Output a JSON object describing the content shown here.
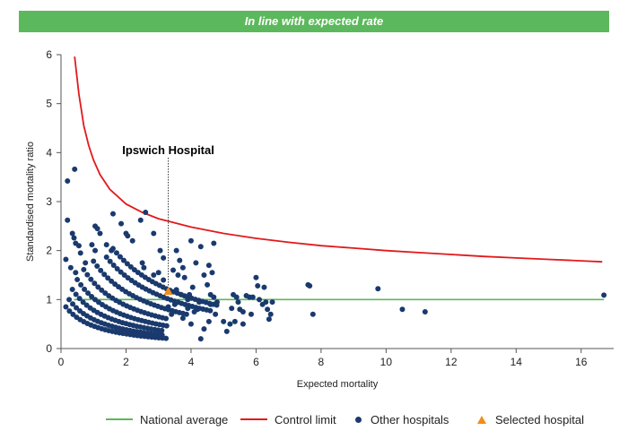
{
  "banner": {
    "text": "In line with expected rate"
  },
  "colors": {
    "banner": "#5cb85c",
    "national_average": "#5cb85c",
    "control_limit": "#e2191c",
    "other_hospitals": "#1a3a6e",
    "selected_hospital": "#f28c1b"
  },
  "chart_data": {
    "type": "scatter",
    "title": "",
    "xlabel": "Expected mortality",
    "ylabel": "Standardised mortality ratio",
    "xlim": [
      0,
      17
    ],
    "ylim": [
      0,
      6
    ],
    "xticks": [
      "0",
      "2",
      "4",
      "6",
      "8",
      "10",
      "12",
      "14",
      "16"
    ],
    "yticks": [
      "0",
      "1",
      "2",
      "3",
      "4",
      "5",
      "6"
    ],
    "grid": false,
    "legend_position": "bottom",
    "national_average": {
      "name": "National average",
      "y": 1,
      "x_range": [
        0.4,
        16.7
      ]
    },
    "control_limit": {
      "name": "Control limit",
      "points": [
        [
          0.42,
          5.96
        ],
        [
          0.55,
          5.2
        ],
        [
          0.7,
          4.55
        ],
        [
          0.85,
          4.15
        ],
        [
          1.0,
          3.85
        ],
        [
          1.2,
          3.55
        ],
        [
          1.5,
          3.25
        ],
        [
          2.0,
          2.95
        ],
        [
          2.5,
          2.78
        ],
        [
          3.0,
          2.65
        ],
        [
          3.3,
          2.6
        ],
        [
          4.0,
          2.48
        ],
        [
          5.0,
          2.35
        ],
        [
          6.0,
          2.25
        ],
        [
          7.0,
          2.17
        ],
        [
          8.0,
          2.1
        ],
        [
          9.0,
          2.05
        ],
        [
          10.0,
          2.0
        ],
        [
          11.0,
          1.96
        ],
        [
          12.0,
          1.92
        ],
        [
          13.0,
          1.88
        ],
        [
          14.0,
          1.85
        ],
        [
          15.0,
          1.82
        ],
        [
          16.0,
          1.79
        ],
        [
          16.65,
          1.77
        ]
      ]
    },
    "other_hospitals": {
      "name": "Other hospitals",
      "points": [
        [
          0.2,
          3.42
        ],
        [
          0.42,
          3.66
        ],
        [
          0.2,
          2.62
        ],
        [
          0.35,
          2.35
        ],
        [
          0.4,
          2.26
        ],
        [
          0.45,
          2.15
        ],
        [
          0.55,
          2.1
        ],
        [
          0.3,
          1.65
        ],
        [
          0.45,
          1.55
        ],
        [
          0.15,
          1.82
        ],
        [
          0.6,
          1.95
        ],
        [
          0.75,
          1.75
        ],
        [
          0.95,
          2.12
        ],
        [
          1.05,
          2.5
        ],
        [
          1.12,
          2.45
        ],
        [
          1.2,
          2.35
        ],
        [
          1.05,
          2.0
        ],
        [
          1.4,
          2.12
        ],
        [
          1.55,
          2.0
        ],
        [
          1.6,
          2.75
        ],
        [
          1.85,
          2.55
        ],
        [
          2.0,
          2.35
        ],
        [
          2.05,
          2.3
        ],
        [
          2.2,
          2.2
        ],
        [
          2.45,
          2.62
        ],
        [
          2.6,
          2.78
        ],
        [
          2.85,
          2.35
        ],
        [
          3.05,
          2.0
        ],
        [
          3.15,
          1.85
        ],
        [
          2.5,
          1.75
        ],
        [
          2.55,
          1.65
        ],
        [
          2.85,
          1.5
        ],
        [
          3.0,
          1.55
        ],
        [
          3.15,
          1.4
        ],
        [
          3.45,
          1.6
        ],
        [
          3.55,
          2.0
        ],
        [
          3.65,
          1.8
        ],
        [
          3.75,
          1.65
        ],
        [
          3.6,
          1.5
        ],
        [
          3.8,
          1.45
        ],
        [
          3.55,
          1.2
        ],
        [
          3.7,
          1.1
        ],
        [
          3.9,
          1.0
        ],
        [
          4.0,
          2.2
        ],
        [
          4.15,
          1.75
        ],
        [
          4.3,
          2.08
        ],
        [
          4.4,
          1.5
        ],
        [
          4.55,
          1.7
        ],
        [
          4.65,
          1.55
        ],
        [
          4.7,
          2.15
        ],
        [
          4.5,
          1.3
        ],
        [
          4.6,
          1.1
        ],
        [
          4.7,
          1.05
        ],
        [
          4.8,
          0.95
        ],
        [
          4.6,
          0.9
        ],
        [
          4.75,
          0.7
        ],
        [
          4.55,
          0.55
        ],
        [
          4.4,
          0.4
        ],
        [
          4.3,
          0.2
        ],
        [
          4.25,
          0.95
        ],
        [
          4.1,
          0.75
        ],
        [
          4.2,
          0.8
        ],
        [
          4.05,
          1.25
        ],
        [
          3.95,
          1.1
        ],
        [
          3.3,
          0.85
        ],
        [
          3.4,
          0.7
        ],
        [
          3.5,
          0.9
        ],
        [
          3.6,
          0.95
        ],
        [
          3.75,
          0.62
        ],
        [
          3.9,
          0.82
        ],
        [
          4.0,
          0.5
        ],
        [
          5.0,
          0.55
        ],
        [
          5.2,
          0.5
        ],
        [
          5.3,
          1.1
        ],
        [
          5.4,
          1.05
        ],
        [
          5.45,
          0.95
        ],
        [
          5.5,
          0.8
        ],
        [
          5.6,
          0.75
        ],
        [
          5.6,
          0.5
        ],
        [
          5.7,
          1.08
        ],
        [
          5.8,
          1.05
        ],
        [
          5.85,
          0.7
        ],
        [
          5.9,
          1.05
        ],
        [
          6.0,
          1.45
        ],
        [
          6.05,
          1.28
        ],
        [
          6.1,
          1.0
        ],
        [
          6.2,
          0.9
        ],
        [
          6.25,
          1.25
        ],
        [
          6.3,
          0.95
        ],
        [
          6.35,
          0.8
        ],
        [
          6.4,
          0.6
        ],
        [
          6.45,
          0.7
        ],
        [
          6.5,
          0.95
        ],
        [
          5.1,
          0.35
        ],
        [
          5.25,
          0.82
        ],
        [
          5.35,
          0.55
        ],
        [
          7.6,
          1.3
        ],
        [
          7.65,
          1.28
        ],
        [
          7.75,
          0.7
        ],
        [
          9.75,
          1.22
        ],
        [
          10.5,
          0.8
        ],
        [
          11.2,
          0.75
        ],
        [
          16.7,
          1.09
        ]
      ]
    },
    "selected_hospital": {
      "name": "Selected hospital",
      "x": 3.3,
      "y": 1.17,
      "label": "Ipswich Hospital"
    }
  }
}
